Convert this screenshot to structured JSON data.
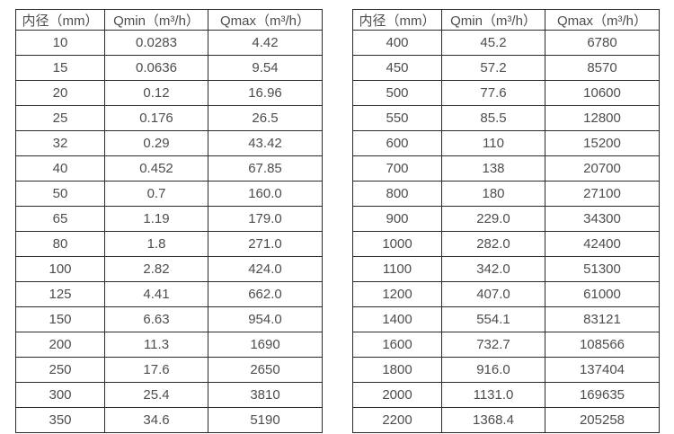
{
  "colors": {
    "background": "#ffffff",
    "text": "#4d4d4d",
    "border": "#2b2b2b"
  },
  "tables": [
    {
      "name": "flow-table-small-diameters",
      "headers": [
        "内径（mm）",
        "Qmin（m³/h）",
        "Qmax（m³/h）"
      ],
      "rows": [
        [
          "10",
          "0.0283",
          "4.42"
        ],
        [
          "15",
          "0.0636",
          "9.54"
        ],
        [
          "20",
          "0.12",
          "16.96"
        ],
        [
          "25",
          "0.176",
          "26.5"
        ],
        [
          "32",
          "0.29",
          "43.42"
        ],
        [
          "40",
          "0.452",
          "67.85"
        ],
        [
          "50",
          "0.7",
          "160.0"
        ],
        [
          "65",
          "1.19",
          "179.0"
        ],
        [
          "80",
          "1.8",
          "271.0"
        ],
        [
          "100",
          "2.82",
          "424.0"
        ],
        [
          "125",
          "4.41",
          "662.0"
        ],
        [
          "150",
          "6.63",
          "954.0"
        ],
        [
          "200",
          "11.3",
          "1690"
        ],
        [
          "250",
          "17.6",
          "2650"
        ],
        [
          "300",
          "25.4",
          "3810"
        ],
        [
          "350",
          "34.6",
          "5190"
        ]
      ]
    },
    {
      "name": "flow-table-large-diameters",
      "headers": [
        "内径（mm）",
        "Qmin（m³/h）",
        "Qmax（m³/h）"
      ],
      "rows": [
        [
          "400",
          "45.2",
          "6780"
        ],
        [
          "450",
          "57.2",
          "8570"
        ],
        [
          "500",
          "77.6",
          "10600"
        ],
        [
          "550",
          "85.5",
          "12800"
        ],
        [
          "600",
          "110",
          "15200"
        ],
        [
          "700",
          "138",
          "20700"
        ],
        [
          "800",
          "180",
          "27100"
        ],
        [
          "900",
          "229.0",
          "34300"
        ],
        [
          "1000",
          "282.0",
          "42400"
        ],
        [
          "1100",
          "342.0",
          "51300"
        ],
        [
          "1200",
          "407.0",
          "61000"
        ],
        [
          "1400",
          "554.1",
          "83121"
        ],
        [
          "1600",
          "732.7",
          "108566"
        ],
        [
          "1800",
          "916.0",
          "137404"
        ],
        [
          "2000",
          "1131.0",
          "169635"
        ],
        [
          "2200",
          "1368.4",
          "205258"
        ]
      ]
    }
  ]
}
